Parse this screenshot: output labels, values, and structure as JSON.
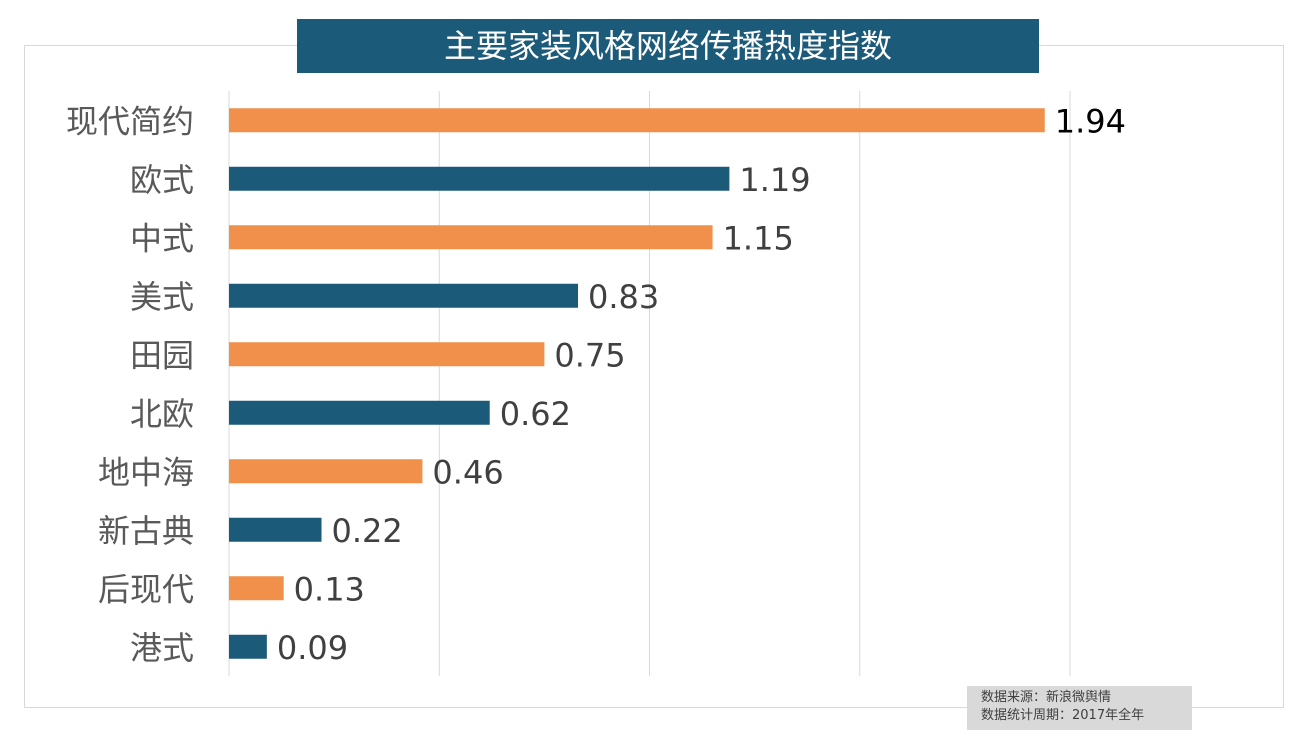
{
  "chart_data": {
    "type": "bar",
    "orientation": "horizontal",
    "title": "主要家装风格网络传播热度指数",
    "categories": [
      "现代简约",
      "欧式",
      "中式",
      "美式",
      "田园",
      "北欧",
      "地中海",
      "新古典",
      "后现代",
      "港式"
    ],
    "values": [
      1.94,
      1.19,
      1.15,
      0.83,
      0.75,
      0.62,
      0.46,
      0.22,
      0.13,
      0.09
    ],
    "bar_colors": [
      "#f0904a",
      "#1c5a7a",
      "#f0904a",
      "#1c5a7a",
      "#f0904a",
      "#1c5a7a",
      "#f0904a",
      "#1c5a7a",
      "#f0904a",
      "#1c5a7a"
    ],
    "xlim": [
      0,
      2
    ],
    "grid": true,
    "xlabel": "",
    "ylabel": ""
  },
  "footer": {
    "source": "数据来源：新浪微舆情",
    "period": "数据统计周期：2017年全年"
  }
}
